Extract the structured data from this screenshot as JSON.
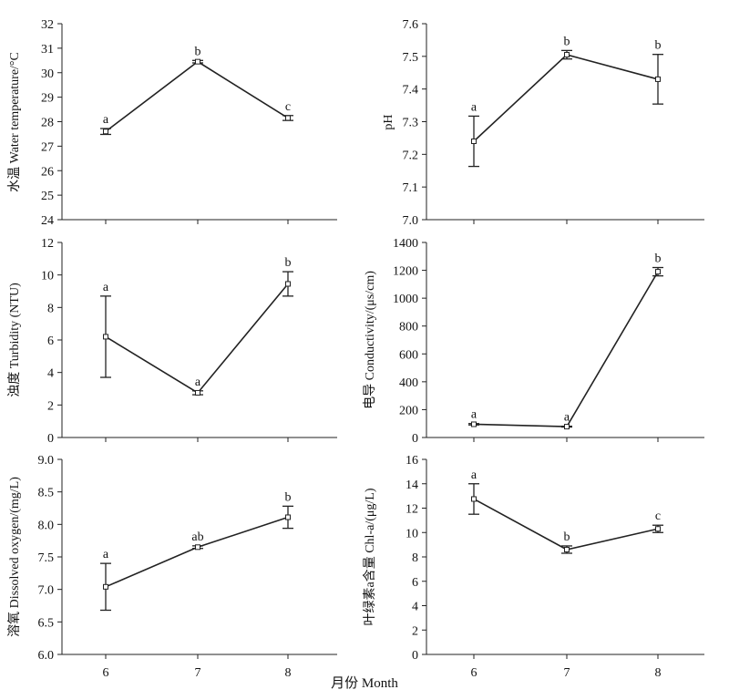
{
  "figure": {
    "xlabel": "月份 Month"
  },
  "chart_data": [
    {
      "type": "line",
      "ylabel": "水温 Water temperature/°C",
      "x": [
        6,
        7,
        8
      ],
      "y": [
        27.6,
        30.45,
        28.15
      ],
      "err": [
        0.12,
        0.05,
        0.1
      ],
      "labels": [
        "a",
        "b",
        "c"
      ],
      "ylim": [
        24,
        32
      ],
      "yticks": [
        "24",
        "25",
        "26",
        "27",
        "28",
        "29",
        "30",
        "31",
        "32"
      ],
      "xticks": [
        "6",
        "7",
        "8"
      ]
    },
    {
      "type": "line",
      "ylabel": "pH",
      "x": [
        6,
        7,
        8
      ],
      "y": [
        7.24,
        7.505,
        7.43
      ],
      "err": [
        0.077,
        0.013,
        0.076
      ],
      "labels": [
        "a",
        "b",
        "b"
      ],
      "ylim": [
        7.0,
        7.6
      ],
      "yticks": [
        "7.0",
        "7.1",
        "7.2",
        "7.3",
        "7.4",
        "7.5",
        "7.6"
      ],
      "xticks": [
        "6",
        "7",
        "8"
      ]
    },
    {
      "type": "line",
      "ylabel": "浊度 Turbidity (NTU)",
      "x": [
        6,
        7,
        8
      ],
      "y": [
        6.2,
        2.75,
        9.45
      ],
      "err": [
        2.5,
        0.12,
        0.75
      ],
      "labels": [
        "a",
        "a",
        "b"
      ],
      "ylim": [
        0,
        12
      ],
      "yticks": [
        "0",
        "2",
        "4",
        "6",
        "8",
        "10",
        "12"
      ],
      "xticks": [
        "6",
        "7",
        "8"
      ]
    },
    {
      "type": "line",
      "ylabel": "电导 Conductivity/(μs/cm)",
      "x": [
        6,
        7,
        8
      ],
      "y": [
        95,
        78,
        1190
      ],
      "err": [
        5,
        3,
        30
      ],
      "labels": [
        "a",
        "a",
        "b"
      ],
      "ylim": [
        0,
        1400
      ],
      "yticks": [
        "0",
        "200",
        "400",
        "600",
        "800",
        "1000",
        "1200",
        "1400"
      ],
      "xticks": [
        "6",
        "7",
        "8"
      ]
    },
    {
      "type": "line",
      "ylabel": "溶氧 Dissolved oxygen/(mg/L)",
      "x": [
        6,
        7,
        8
      ],
      "y": [
        7.04,
        7.65,
        8.11
      ],
      "err": [
        0.36,
        0.02,
        0.17
      ],
      "labels": [
        "a",
        "ab",
        "b"
      ],
      "ylim": [
        6.0,
        9.0
      ],
      "yticks": [
        "6.0",
        "6.5",
        "7.0",
        "7.5",
        "8.0",
        "8.5",
        "9.0"
      ],
      "xticks": [
        "6",
        "7",
        "8"
      ]
    },
    {
      "type": "line",
      "ylabel": "叶绿素a含量 Chl-a/(μg/L)",
      "x": [
        6,
        7,
        8
      ],
      "y": [
        12.75,
        8.6,
        10.3
      ],
      "err": [
        1.25,
        0.3,
        0.3
      ],
      "labels": [
        "a",
        "b",
        "c"
      ],
      "ylim": [
        0,
        16
      ],
      "yticks": [
        "0",
        "2",
        "4",
        "6",
        "8",
        "10",
        "12",
        "14",
        "16"
      ],
      "xticks": [
        "6",
        "7",
        "8"
      ]
    }
  ]
}
